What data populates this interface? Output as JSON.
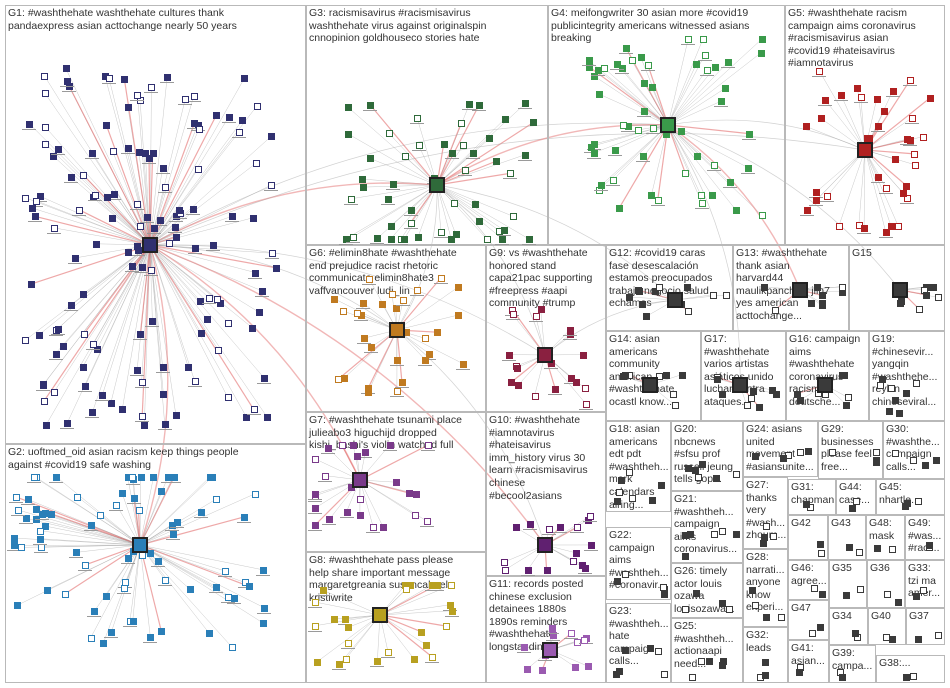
{
  "groups": [
    {
      "id": "G1",
      "label": "G1: #washthehate washthehate cultures thank\npandaexpress asian acttochange nearly 50 years",
      "accent": "#303070"
    },
    {
      "id": "G2",
      "label": "G2: uoftmed_oid asian racism keep things people\nagainst #covid19 safe washing",
      "accent": "#2a7fb8"
    },
    {
      "id": "G3",
      "label": "G3: racismisavirus #racismisavirus\nwashthehate virus against originalspin\ncnnopinion goldhouseco stories hate",
      "accent": "#2f6a3a"
    },
    {
      "id": "G4",
      "label": "G4: meifongwriter 30 asian more #covid19\npublicintegrity americans witnessed asians\nbreaking",
      "accent": "#3a9a4a"
    },
    {
      "id": "G5",
      "label": "G5: #washthehate racism\ncampaign aims coronavirus\n#racismisavirus asian\n#covid19 #hateisavirus\n#iamnotavirus",
      "accent": "#b02020"
    },
    {
      "id": "G6",
      "label": "G6: #elimin8hate #washthehate\nend prejudice racist rhetoric\ncommunicate elimin8hate3\nvaffvancouver ludi_lin",
      "accent": "#c07a20"
    },
    {
      "id": "G7",
      "label": "G7: #washthehate tsunami place\njulieabo3 higuchijd dropped\nkishi_bashi's violin watched full",
      "accent": "#7a3a8a"
    },
    {
      "id": "G8",
      "label": "G8: #washthehate pass please\nhelp share important message\nmargaretgreania susancabeel\nkristiwrite",
      "accent": "#b8a020"
    },
    {
      "id": "G9",
      "label": "G9: vs #washthehate\nhonored stand\ncapa21pac supporting\n#freepress #aapi\ncommunity #trump",
      "accent": "#8a2040"
    },
    {
      "id": "G10",
      "label": "G10: #washthehate\n#iamnotavirus\n#hateisavirus\nimm_history virus 30\nlearn #racismisavirus\nchinese\n#becool2asians",
      "accent": "#602070"
    },
    {
      "id": "G11",
      "label": "G11: records posted\nchinese exclusion\ndetainees 1880s\n1890s reminders\n#washthehate\nlongstanding",
      "accent": "#9a5ab0"
    },
    {
      "id": "G12",
      "label": "G12: #covid19 caras\nfase desescalación\nestamos preocupados\ntrabajo negocio salud\nechamos",
      "accent": "#3a3a3a"
    },
    {
      "id": "G13",
      "label": "G13: #washthehate\nthank asian\nharvard44\nmaulikpancholy jlin7\nyes american\nacttochange...",
      "accent": "#3a3a3a"
    },
    {
      "id": "G14",
      "label": "G14: asian\namericans\ncommunity\namerican\n#washthehate\nocastl know...",
      "accent": "#3a3a3a"
    },
    {
      "id": "G15",
      "label": "G15",
      "accent": "#3a3a3a"
    },
    {
      "id": "G16",
      "label": "G16: campaign\naims\n#washthehate\ncoronavirus\nracism\ndeutsche...",
      "accent": "#3a3a3a"
    },
    {
      "id": "G17",
      "label": "G17:\n#washthehate\nvarios artistas\nasiáticos unido\nluchar contra\nataques...",
      "accent": "#3a3a3a"
    },
    {
      "id": "G18",
      "label": "G18: asian\namericans\nedt pdt\n#washtheh...\nmark\ncalendars\nairing...",
      "accent": "#3a3a3a"
    },
    {
      "id": "G19",
      "label": "G19:\n#chinesevir...\nyangqin\n#washthehe...\nreylxn\nchineseviral...",
      "accent": "#3a3a3a"
    },
    {
      "id": "G20",
      "label": "G20:\nnbcnews\n#sfsu prof\nrussell jeung\ntells gop...",
      "accent": "#3a3a3a"
    },
    {
      "id": "G21",
      "label": "G21:\n#washtheh...\ncampaign\naims\ncoronavirus...",
      "accent": "#3a3a3a"
    },
    {
      "id": "G22",
      "label": "G22:\ncampaign\naims\n#washtheh...\n#coronavir...",
      "accent": "#3a3a3a"
    },
    {
      "id": "G23",
      "label": "G23:\n#washtheh...\nhate\ncampaign\ncalls...",
      "accent": "#3a3a3a"
    },
    {
      "id": "G24",
      "label": "G24: asians\nunited\nmovement\n#asiansunite...",
      "accent": "#3a3a3a"
    },
    {
      "id": "G25",
      "label": "G25:\n#washtheh...\nactionaapi\nneed...",
      "accent": "#3a3a3a"
    },
    {
      "id": "G26",
      "label": "G26: timely\nactor louis\nozawa\nlouisozawa...",
      "accent": "#3a3a3a"
    },
    {
      "id": "G27",
      "label": "G27:\nthanks\nvery\n#wash...\nzhoum...",
      "accent": "#3a3a3a"
    },
    {
      "id": "G28",
      "label": "G28:\nnarrati...\nanyone\nknow\nexperi...",
      "accent": "#3a3a3a"
    },
    {
      "id": "G29",
      "label": "G29:\nbusinesses\nplease feel\nfree...",
      "accent": "#3a3a3a"
    },
    {
      "id": "G30",
      "label": "G30:\n#washthe...\ncampaign\ncalls...",
      "accent": "#3a3a3a"
    },
    {
      "id": "G31",
      "label": "G31:\nchapman...",
      "accent": "#3a3a3a"
    },
    {
      "id": "G32",
      "label": "G32:\nleads",
      "accent": "#3a3a3a"
    },
    {
      "id": "G33",
      "label": "G33:\ntzi ma\namer...",
      "accent": "#3a3a3a"
    },
    {
      "id": "G34",
      "label": "G34",
      "accent": "#3a3a3a"
    },
    {
      "id": "G35",
      "label": "G35",
      "accent": "#3a3a3a"
    },
    {
      "id": "G36",
      "label": "G36",
      "accent": "#3a3a3a"
    },
    {
      "id": "G37",
      "label": "G37",
      "accent": "#3a3a3a"
    },
    {
      "id": "G38",
      "label": "G38:...",
      "accent": "#3a3a3a"
    },
    {
      "id": "G39",
      "label": "G39:\ncampa...",
      "accent": "#3a3a3a"
    },
    {
      "id": "G40",
      "label": "G40",
      "accent": "#3a3a3a"
    },
    {
      "id": "G41",
      "label": "G41:\nasian...",
      "accent": "#3a3a3a"
    },
    {
      "id": "G42",
      "label": "G42",
      "accent": "#3a3a3a"
    },
    {
      "id": "G43",
      "label": "G43",
      "accent": "#3a3a3a"
    },
    {
      "id": "G44",
      "label": "G44:\ncase...",
      "accent": "#3a3a3a"
    },
    {
      "id": "G45",
      "label": "G45:\nnhartle...",
      "accent": "#3a3a3a"
    },
    {
      "id": "G46",
      "label": "G46:\nagree...",
      "accent": "#3a3a3a"
    },
    {
      "id": "G47",
      "label": "G47",
      "accent": "#3a3a3a"
    },
    {
      "id": "G48",
      "label": "G48:\nmask",
      "accent": "#3a3a3a"
    },
    {
      "id": "G49",
      "label": "G49:\n#was...\n#raci...",
      "accent": "#3a3a3a"
    }
  ],
  "colors": {
    "border": "#b9b9b9",
    "edge_gray": "#9a9a9a",
    "edge_red": "#e06060",
    "label_text": "#333333"
  }
}
